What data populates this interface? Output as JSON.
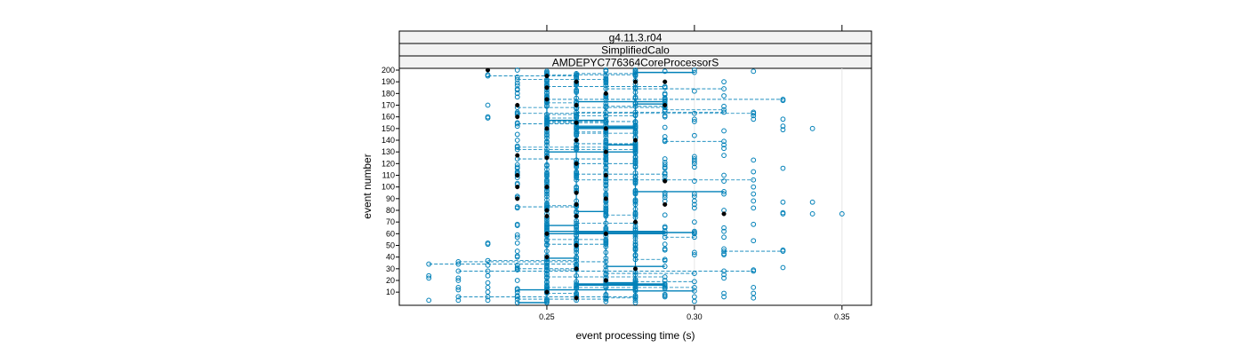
{
  "chart_data": {
    "type": "scatter",
    "strips": [
      "g4.11.3.r04",
      "SimplifiedCalo",
      "AMDEPYC776364CoreProcessorS"
    ],
    "xlabel": "event processing time (s)",
    "ylabel": "event number",
    "xlim": [
      0.2,
      0.36
    ],
    "ylim": [
      1,
      200
    ],
    "x_ticks": [
      0.25,
      0.3,
      0.35
    ],
    "x_tick_labels": [
      "0.25",
      "0.30",
      "0.35"
    ],
    "y_ticks": [
      10,
      20,
      30,
      40,
      50,
      60,
      70,
      80,
      90,
      100,
      110,
      120,
      130,
      140,
      150,
      160,
      170,
      180,
      190,
      200
    ],
    "y_tick_labels": [
      "10",
      "20",
      "30",
      "40",
      "50",
      "60",
      "70",
      "80",
      "90",
      "100",
      "110",
      "120",
      "130",
      "140",
      "150",
      "160",
      "170",
      "180",
      "190",
      "200"
    ],
    "grid": false,
    "colors": {
      "open": "#0080b8",
      "filled": "#000000",
      "line": "#0080b8",
      "frame": "#000000",
      "strip_bg": "#f2f2f2",
      "refline": "#e6e6e6"
    },
    "x_levels": [
      0.21,
      0.22,
      0.23,
      0.24,
      0.25,
      0.26,
      0.27,
      0.28,
      0.29,
      0.3,
      0.31,
      0.32,
      0.33,
      0.34
    ],
    "filled_points": [
      [
        0.23,
        200
      ],
      [
        0.24,
        170
      ],
      [
        0.24,
        160
      ],
      [
        0.24,
        110
      ],
      [
        0.24,
        100
      ],
      [
        0.24,
        90
      ],
      [
        0.24,
        127
      ],
      [
        0.25,
        195
      ],
      [
        0.25,
        185
      ],
      [
        0.25,
        175
      ],
      [
        0.25,
        150
      ],
      [
        0.25,
        125
      ],
      [
        0.25,
        100
      ],
      [
        0.25,
        80
      ],
      [
        0.25,
        75
      ],
      [
        0.25,
        60
      ],
      [
        0.25,
        40
      ],
      [
        0.25,
        10
      ],
      [
        0.26,
        190
      ],
      [
        0.26,
        170
      ],
      [
        0.26,
        155
      ],
      [
        0.26,
        140
      ],
      [
        0.26,
        120
      ],
      [
        0.26,
        95
      ],
      [
        0.26,
        85
      ],
      [
        0.26,
        75
      ],
      [
        0.26,
        50
      ],
      [
        0.26,
        30
      ],
      [
        0.26,
        5
      ],
      [
        0.27,
        180
      ],
      [
        0.27,
        150
      ],
      [
        0.27,
        130
      ],
      [
        0.27,
        110
      ],
      [
        0.27,
        90
      ],
      [
        0.27,
        60
      ],
      [
        0.27,
        20
      ],
      [
        0.28,
        190
      ],
      [
        0.28,
        140
      ],
      [
        0.28,
        70
      ],
      [
        0.28,
        30
      ],
      [
        0.29,
        190
      ],
      [
        0.29,
        170
      ],
      [
        0.29,
        105
      ],
      [
        0.29,
        85
      ],
      [
        0.31,
        77
      ]
    ],
    "sparse_points": [
      [
        0.21,
        34
      ],
      [
        0.21,
        24
      ],
      [
        0.21,
        22
      ],
      [
        0.21,
        3
      ],
      [
        0.22,
        36
      ],
      [
        0.22,
        34
      ],
      [
        0.22,
        28
      ],
      [
        0.22,
        22
      ],
      [
        0.22,
        20
      ],
      [
        0.22,
        14
      ],
      [
        0.22,
        12
      ],
      [
        0.22,
        6
      ],
      [
        0.22,
        3
      ],
      [
        0.23,
        196
      ],
      [
        0.23,
        195
      ],
      [
        0.23,
        170
      ],
      [
        0.23,
        160
      ],
      [
        0.23,
        159
      ],
      [
        0.23,
        52
      ],
      [
        0.23,
        51
      ],
      [
        0.23,
        37
      ],
      [
        0.23,
        33
      ],
      [
        0.23,
        28
      ],
      [
        0.23,
        24
      ],
      [
        0.23,
        18
      ],
      [
        0.23,
        14
      ],
      [
        0.23,
        10
      ],
      [
        0.23,
        6
      ],
      [
        0.23,
        3
      ],
      [
        0.33,
        175
      ],
      [
        0.33,
        174
      ],
      [
        0.33,
        158
      ],
      [
        0.33,
        152
      ],
      [
        0.33,
        149
      ],
      [
        0.33,
        116
      ],
      [
        0.33,
        87
      ],
      [
        0.33,
        78
      ],
      [
        0.33,
        77
      ],
      [
        0.33,
        46
      ],
      [
        0.33,
        45
      ],
      [
        0.33,
        31
      ],
      [
        0.34,
        150
      ],
      [
        0.34,
        87
      ],
      [
        0.34,
        77
      ],
      [
        0.35,
        77
      ]
    ]
  }
}
